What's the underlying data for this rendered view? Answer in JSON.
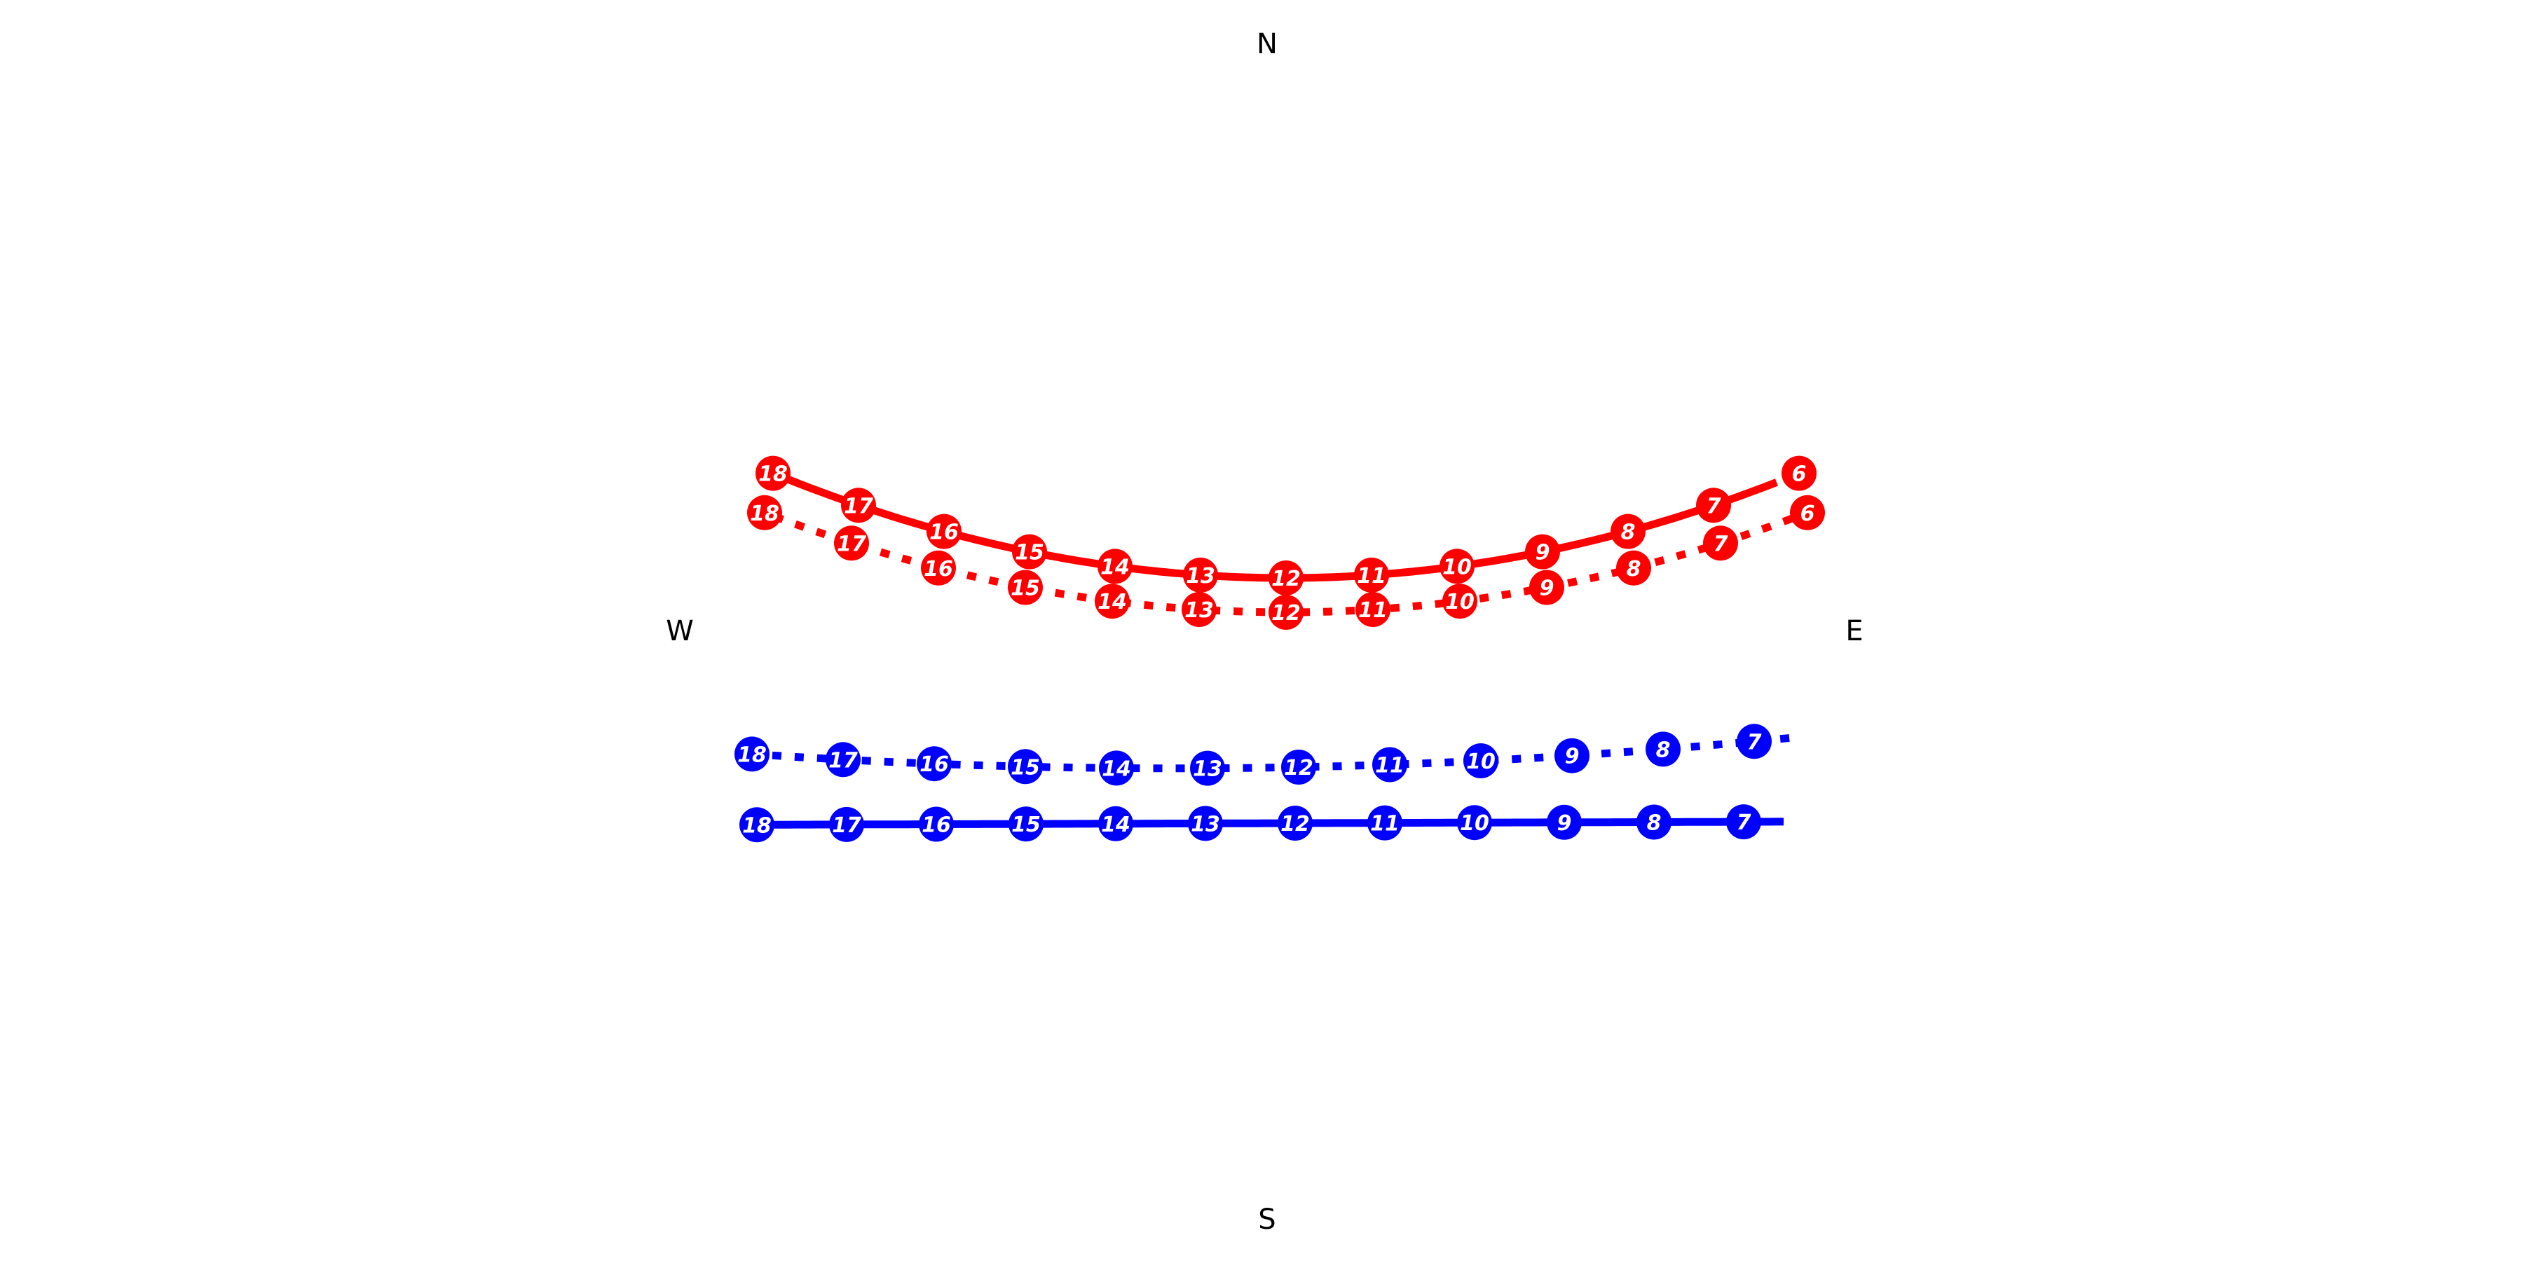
{
  "compass": {
    "north": "N",
    "south": "S",
    "east": "E",
    "west": "W"
  },
  "chart_data": {
    "type": "line",
    "x_axis": "hour",
    "colors": {
      "summer": "#ff0000",
      "winter": "#0000ff"
    },
    "series": [
      {
        "color": "summer",
        "style": "solid",
        "points": [
          {
            "hour": 6,
            "label": "6"
          },
          {
            "hour": 7,
            "label": "7"
          },
          {
            "hour": 8,
            "label": "8"
          },
          {
            "hour": 9,
            "label": "9"
          },
          {
            "hour": 10,
            "label": "10"
          },
          {
            "hour": 11,
            "label": "11"
          },
          {
            "hour": 12,
            "label": "12"
          },
          {
            "hour": 13,
            "label": "13"
          },
          {
            "hour": 14,
            "label": "14"
          },
          {
            "hour": 15,
            "label": "15"
          },
          {
            "hour": 16,
            "label": "16"
          },
          {
            "hour": 17,
            "label": "17"
          },
          {
            "hour": 18,
            "label": "18"
          }
        ]
      },
      {
        "color": "summer",
        "style": "dotted",
        "points": [
          {
            "hour": 6,
            "label": "6"
          },
          {
            "hour": 7,
            "label": "7"
          },
          {
            "hour": 8,
            "label": "8"
          },
          {
            "hour": 9,
            "label": "9"
          },
          {
            "hour": 10,
            "label": "10"
          },
          {
            "hour": 11,
            "label": "11"
          },
          {
            "hour": 12,
            "label": "12"
          },
          {
            "hour": 13,
            "label": "13"
          },
          {
            "hour": 14,
            "label": "14"
          },
          {
            "hour": 15,
            "label": "15"
          },
          {
            "hour": 16,
            "label": "16"
          },
          {
            "hour": 17,
            "label": "17"
          },
          {
            "hour": 18,
            "label": "18"
          }
        ]
      },
      {
        "color": "winter",
        "style": "dotted",
        "points": [
          {
            "hour": 7,
            "label": "7"
          },
          {
            "hour": 8,
            "label": "8"
          },
          {
            "hour": 9,
            "label": "9"
          },
          {
            "hour": 10,
            "label": "10"
          },
          {
            "hour": 11,
            "label": "11"
          },
          {
            "hour": 12,
            "label": "12"
          },
          {
            "hour": 13,
            "label": "13"
          },
          {
            "hour": 14,
            "label": "14"
          },
          {
            "hour": 15,
            "label": "15"
          },
          {
            "hour": 16,
            "label": "16"
          },
          {
            "hour": 17,
            "label": "17"
          },
          {
            "hour": 18,
            "label": "18"
          }
        ]
      },
      {
        "color": "winter",
        "style": "solid",
        "points": [
          {
            "hour": 7,
            "label": "7"
          },
          {
            "hour": 8,
            "label": "8"
          },
          {
            "hour": 9,
            "label": "9"
          },
          {
            "hour": 10,
            "label": "10"
          },
          {
            "hour": 11,
            "label": "11"
          },
          {
            "hour": 12,
            "label": "12"
          },
          {
            "hour": 13,
            "label": "13"
          },
          {
            "hour": 14,
            "label": "14"
          },
          {
            "hour": 15,
            "label": "15"
          },
          {
            "hour": 16,
            "label": "16"
          },
          {
            "hour": 17,
            "label": "17"
          },
          {
            "hour": 18,
            "label": "18"
          }
        ]
      }
    ]
  }
}
